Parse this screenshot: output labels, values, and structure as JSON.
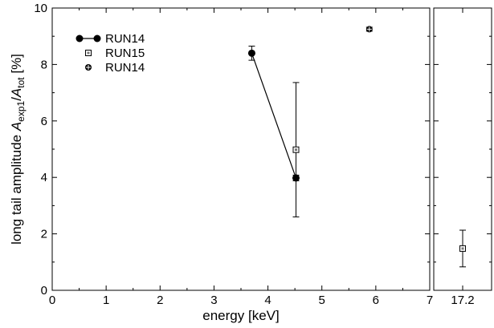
{
  "chart_data": {
    "type": "scatter",
    "xlabel": "energy [keV]",
    "ylabel": {
      "prefix": "long tail amplitude ",
      "A": "A",
      "sub1": "exp1",
      "slash": "/",
      "A2": "A",
      "sub2": "tot",
      "suffix": " [%]"
    },
    "ylim": [
      0,
      10
    ],
    "yticks": [
      "0",
      "2",
      "4",
      "6",
      "8",
      "10"
    ],
    "main_panel": {
      "xlim": [
        0,
        7
      ],
      "xticks": [
        "0",
        "1",
        "2",
        "3",
        "4",
        "5",
        "6",
        "7"
      ]
    },
    "right_panel": {
      "xticks": [
        "17.2"
      ],
      "category": "17.2"
    },
    "legend": {
      "placement": "top-left",
      "entries": [
        "RUN14",
        "RUN15",
        "RUN14"
      ]
    },
    "series": [
      {
        "name": "RUN14",
        "marker": "filled-circle-line",
        "points": [
          {
            "x": 3.7,
            "y": 8.4,
            "err": 0.25
          },
          {
            "x": 4.52,
            "y": 3.98,
            "err": 0.1
          }
        ]
      },
      {
        "name": "RUN15",
        "marker": "open-square",
        "points": [
          {
            "x": 4.52,
            "y": 4.98,
            "err": 2.38
          },
          {
            "x": "17.2",
            "y": 1.48,
            "err": 0.65,
            "panel": "right"
          }
        ]
      },
      {
        "name": "RUN14",
        "marker": "crossed-circle",
        "points": [
          {
            "x": 5.88,
            "y": 9.25,
            "err": 0.07
          }
        ]
      }
    ]
  }
}
